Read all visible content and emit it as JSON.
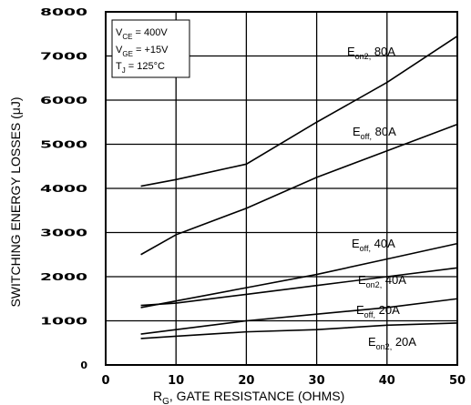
{
  "chart_data": {
    "type": "line",
    "xlabel": {
      "main": "R",
      "sub": "G",
      "rest": ", GATE RESISTANCE (OHMS)"
    },
    "ylabel": "SWITCHING ENERGY LOSSES (μJ)",
    "xlim": [
      0,
      50
    ],
    "ylim": [
      0,
      8000
    ],
    "x_ticks": [
      "0",
      "10",
      "20",
      "30",
      "40",
      "50"
    ],
    "y_ticks": [
      "0",
      "1000",
      "2000",
      "3000",
      "4000",
      "5000",
      "6000",
      "7000",
      "8000"
    ],
    "grid": true,
    "conditions": [
      {
        "main": "V",
        "sub": "CE",
        "rest": " =  400V"
      },
      {
        "main": "V",
        "sub": "GE",
        "rest": " =  +15V"
      },
      {
        "main": "T",
        "sub": "J",
        "rest": " = 125°C"
      }
    ],
    "series": [
      {
        "label": {
          "main": "E",
          "sub": "on2,",
          "rest": " 80A"
        },
        "x": [
          5,
          10,
          20,
          30,
          40,
          50
        ],
        "y": [
          4050,
          4200,
          4550,
          5500,
          6400,
          7450
        ]
      },
      {
        "label": {
          "main": "E",
          "sub": "off,",
          "rest": " 80A"
        },
        "x": [
          5,
          10,
          20,
          30,
          40,
          50
        ],
        "y": [
          2500,
          2950,
          3550,
          4250,
          4850,
          5450
        ]
      },
      {
        "label": {
          "main": "E",
          "sub": "off,",
          "rest": " 40A"
        },
        "x": [
          5,
          10,
          20,
          30,
          40,
          50
        ],
        "y": [
          1300,
          1450,
          1750,
          2050,
          2400,
          2750
        ]
      },
      {
        "label": {
          "main": "E",
          "sub": "on2,",
          "rest": " 40A"
        },
        "x": [
          5,
          10,
          20,
          30,
          40,
          50
        ],
        "y": [
          1350,
          1400,
          1600,
          1800,
          2000,
          2200
        ]
      },
      {
        "label": {
          "main": "E",
          "sub": "off,",
          "rest": " 20A"
        },
        "x": [
          5,
          10,
          20,
          30,
          40,
          50
        ],
        "y": [
          700,
          800,
          1000,
          1150,
          1300,
          1500
        ]
      },
      {
        "label": {
          "main": "E",
          "sub": "on2,",
          "rest": " 20A"
        },
        "x": [
          5,
          10,
          20,
          30,
          40,
          50
        ],
        "y": [
          600,
          650,
          750,
          800,
          900,
          950
        ]
      }
    ]
  }
}
